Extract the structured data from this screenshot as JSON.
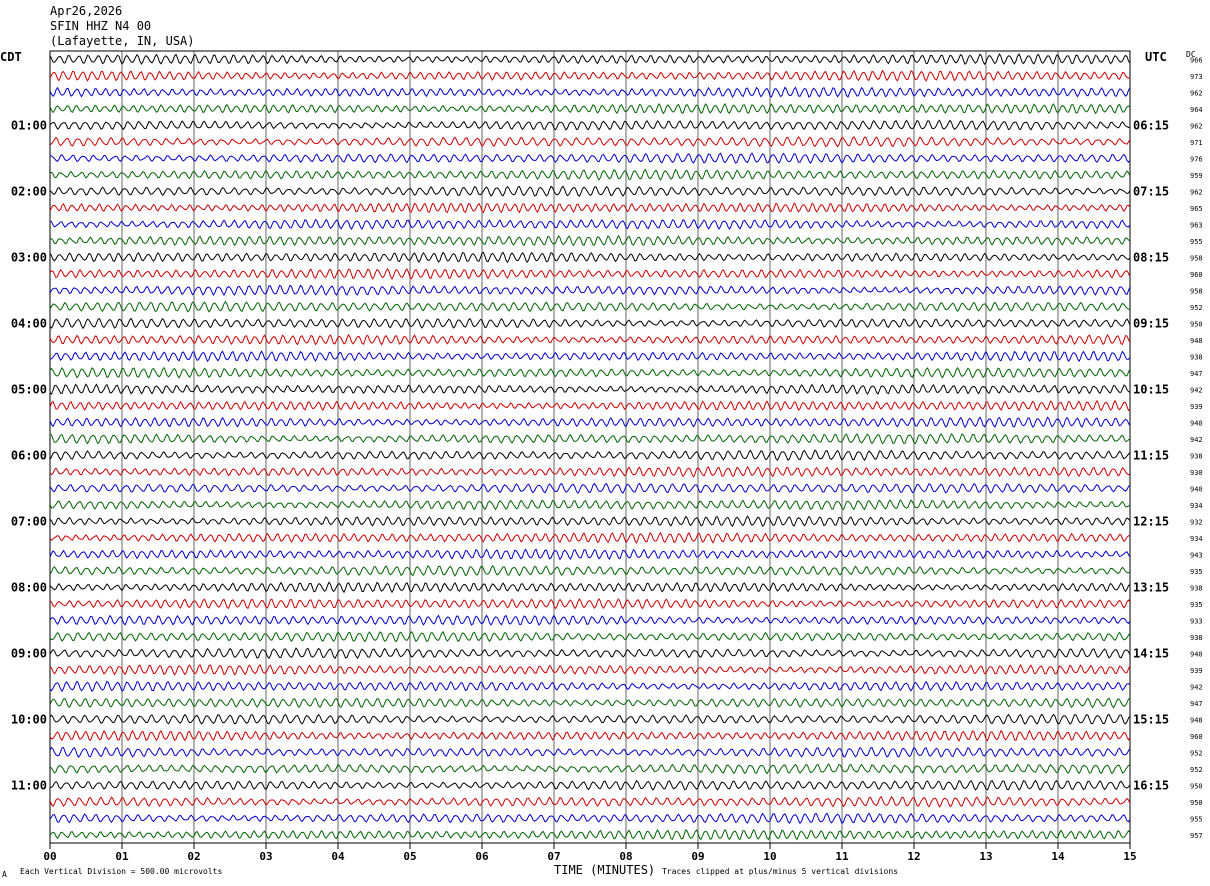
{
  "header": {
    "date": "Apr26,2026",
    "station": "SFIN HHZ N4 00",
    "location": "(Lafayette, IN, USA)",
    "left_zone": "CDT",
    "right_zone": "UTC",
    "dc_label": "DC"
  },
  "footer": {
    "scale_note": "Each Vertical Division =  500.00 microvolts",
    "xlabel": "TIME (MINUTES)",
    "clip_note": "Traces clipped at plus/minus 5 vertical divisions",
    "corner_mark": "A"
  },
  "chart_data": {
    "type": "line",
    "title": "SFIN HHZ N4 00",
    "xlabel": "TIME (MINUTES)",
    "ylabel": "",
    "xlim": [
      0,
      15
    ],
    "x_ticks": [
      "00",
      "01",
      "02",
      "03",
      "04",
      "05",
      "06",
      "07",
      "08",
      "09",
      "10",
      "11",
      "12",
      "13",
      "14",
      "15"
    ],
    "grid": true,
    "trace_count": 48,
    "trace_colors": [
      "#000000",
      "#cc0000",
      "#0000cc",
      "#006400"
    ],
    "left_hour_labels": [
      "01:00",
      "02:00",
      "03:00",
      "04:00",
      "05:00",
      "06:00",
      "07:00",
      "08:00",
      "09:00",
      "10:00",
      "11:00"
    ],
    "right_hour_labels": [
      "06:15",
      "07:15",
      "08:15",
      "09:15",
      "10:15",
      "11:15",
      "12:15",
      "13:15",
      "14:15",
      "15:15",
      "16:15"
    ],
    "dc_offsets": [
      "966",
      "973",
      "962",
      "964",
      "962",
      "971",
      "976",
      "959",
      "962",
      "965",
      "963",
      "955",
      "958",
      "960",
      "958",
      "952",
      "950",
      "948",
      "938",
      "947",
      "942",
      "939",
      "940",
      "942",
      "938",
      "930",
      "940",
      "934",
      "932",
      "934",
      "943",
      "935",
      "938",
      "935",
      "933",
      "938",
      "940",
      "939",
      "942",
      "947",
      "948",
      "960",
      "952",
      "952",
      "950",
      "950",
      "955",
      "957"
    ]
  }
}
